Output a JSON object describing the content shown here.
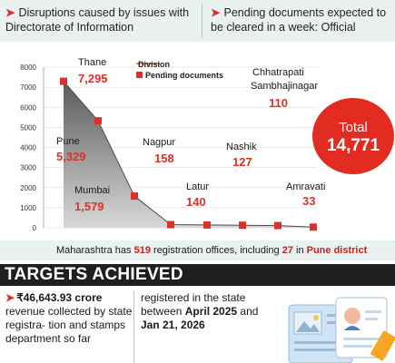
{
  "bullets": {
    "left": "Disruptions caused by issues with Directorate of Information",
    "right": "Pending documents expected to be cleared in a week: Official"
  },
  "chart_data": {
    "type": "area",
    "legend": {
      "marker_label": "Division",
      "square_label": "Pending documents"
    },
    "y_ticks": [
      "8000",
      "7000",
      "6000",
      "5000",
      "4000",
      "3000",
      "2000",
      "1000",
      "0"
    ],
    "ylim": [
      0,
      8000
    ],
    "points": [
      {
        "name": "Thane",
        "value": 7295,
        "value_label": "7,295"
      },
      {
        "name": "Pune",
        "value": 5329,
        "value_label": "5,329"
      },
      {
        "name": "Mumbai",
        "value": 1579,
        "value_label": "1,579"
      },
      {
        "name": "Nagpur",
        "value": 158,
        "value_label": "158"
      },
      {
        "name": "Latur",
        "value": 140,
        "value_label": "140"
      },
      {
        "name": "Nashik",
        "value": 127,
        "value_label": "127"
      },
      {
        "name": "Chhatrapati Sambhajinagar",
        "name_line1": "Chhatrapati",
        "name_line2": "Sambhajinagar",
        "value": 110,
        "value_label": "110"
      },
      {
        "name": "Amravati",
        "value": 33,
        "value_label": "33"
      }
    ],
    "total": {
      "label": "Total",
      "value": "14,771"
    }
  },
  "info_band": {
    "prefix": "Maharashtra has ",
    "offices": "519",
    "middle": " registration offices, including ",
    "pune_count": "27",
    "in_word": " in ",
    "pune": "Pune district"
  },
  "targets": {
    "heading": "TARGETS ACHIEVED",
    "left_amount": "₹46,643.93 crore",
    "left_rest": "revenue collected by state registra- tion and stamps department so far",
    "mid_text": "registered in the state between",
    "mid_date1": "April 2025",
    "mid_and": " and",
    "mid_date2": "Jan 21, 2026"
  },
  "colors": {
    "accent": "#e22b21",
    "band": "#e9f2f1",
    "heading_bg": "#1f1f1f"
  },
  "icons": {
    "bullet": "red-arrow-icon",
    "illustration": "documents-illustration"
  }
}
